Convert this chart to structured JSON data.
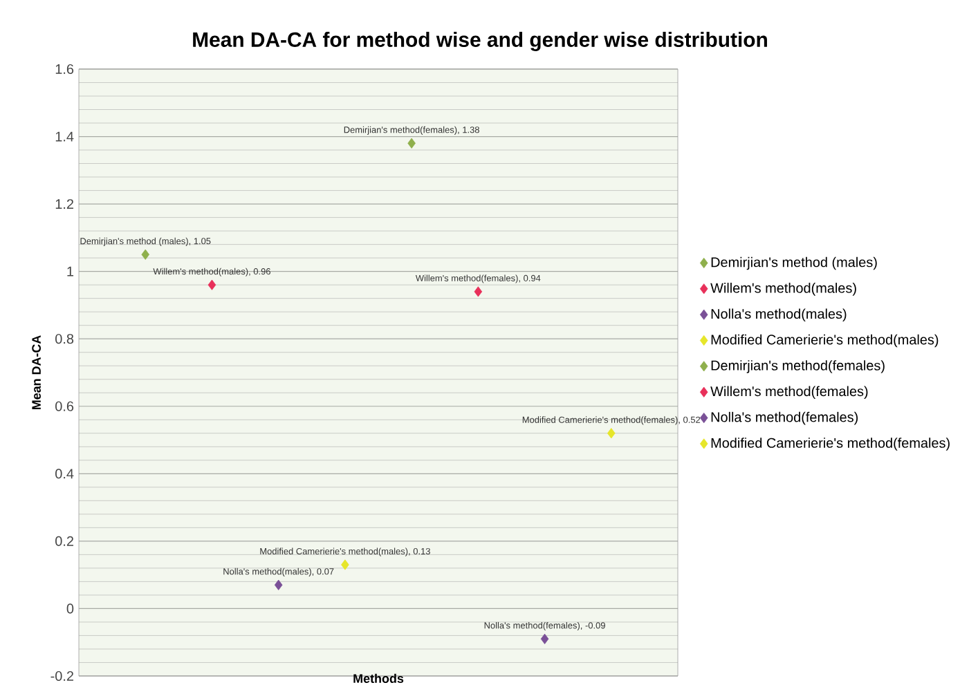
{
  "chart_data": {
    "type": "scatter",
    "title": "Mean DA-CA for method wise and gender wise distribution",
    "xlabel": "Methods",
    "ylabel": "Mean DA-CA",
    "categories": [
      null,
      null,
      null,
      null,
      null,
      null,
      null,
      null
    ],
    "series": [
      {
        "name": "Demirjian's method (males)",
        "color": "#8fb04c",
        "values": [
          1.05,
          null,
          null,
          null,
          null,
          null,
          null,
          null
        ],
        "value_labels": [
          "Demirjian's method (males), 1.05",
          null,
          null,
          null,
          null,
          null,
          null,
          null
        ]
      },
      {
        "name": "Willem's method(males)",
        "color": "#e8305a",
        "values": [
          null,
          0.96,
          null,
          null,
          null,
          null,
          null,
          null
        ],
        "value_labels": [
          null,
          "Willem's method(males), 0.96",
          null,
          null,
          null,
          null,
          null,
          null
        ]
      },
      {
        "name": "Nolla's method(males)",
        "color": "#7a5097",
        "values": [
          null,
          null,
          0.07,
          null,
          null,
          null,
          null,
          null
        ],
        "value_labels": [
          null,
          null,
          "Nolla's method(males), 0.07",
          null,
          null,
          null,
          null,
          null
        ]
      },
      {
        "name": "Modified Camerierie's method(males)",
        "color": "#e6e62a",
        "values": [
          null,
          null,
          null,
          0.13,
          null,
          null,
          null,
          null
        ],
        "value_labels": [
          null,
          null,
          null,
          "Modified Camerierie's method(males), 0.13",
          null,
          null,
          null,
          null
        ]
      },
      {
        "name": "Demirjian's method(females)",
        "color": "#8fb04c",
        "values": [
          null,
          null,
          null,
          null,
          1.38,
          null,
          null,
          null
        ],
        "value_labels": [
          null,
          null,
          null,
          null,
          "Demirjian's method(females), 1.38",
          null,
          null,
          null
        ]
      },
      {
        "name": "Willem's method(females)",
        "color": "#e8305a",
        "values": [
          null,
          null,
          null,
          null,
          null,
          0.94,
          null,
          null
        ],
        "value_labels": [
          null,
          null,
          null,
          null,
          null,
          "Willem's method(females), 0.94",
          null,
          null
        ]
      },
      {
        "name": "Nolla's method(females)",
        "color": "#7a5097",
        "values": [
          null,
          null,
          null,
          null,
          null,
          null,
          -0.09,
          null
        ],
        "value_labels": [
          null,
          null,
          null,
          null,
          null,
          null,
          "Nolla's method(females), -0.09",
          null
        ]
      },
      {
        "name": "Modified Camerierie's method(females)",
        "color": "#e6e62a",
        "values": [
          null,
          null,
          null,
          null,
          null,
          null,
          null,
          0.52
        ],
        "value_labels": [
          null,
          null,
          null,
          null,
          null,
          null,
          null,
          "Modified Camerierie's method(females), 0.52"
        ]
      }
    ],
    "ylim": [
      -0.2,
      1.6
    ],
    "yticks": [
      -0.2,
      0,
      0.2,
      0.4,
      0.6,
      0.8,
      1,
      1.2,
      1.4,
      1.6
    ],
    "grid": "y",
    "legend": "right",
    "marker": "diamond",
    "tick_labels": "y"
  }
}
